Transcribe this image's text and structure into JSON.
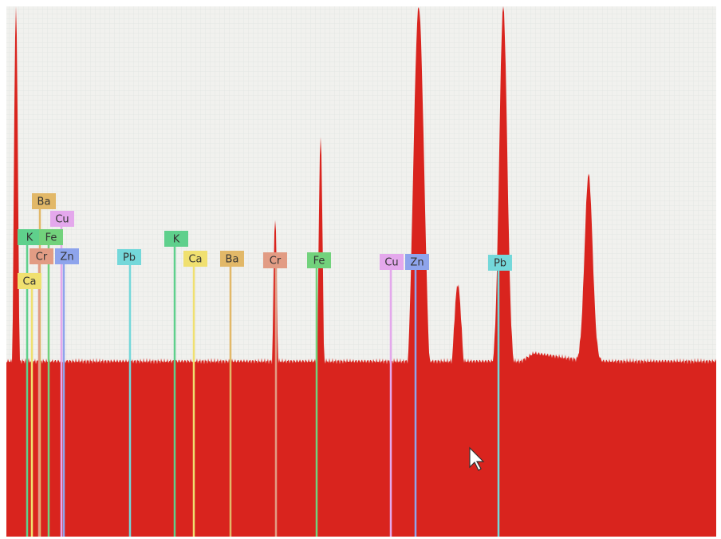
{
  "markers": [
    {
      "label": "Ba",
      "color": "#e2b868"
    },
    {
      "label": "Cu",
      "color": "#e4a8ec"
    },
    {
      "label": "K",
      "color": "#5fd08c"
    },
    {
      "label": "Fe",
      "color": "#72d27c"
    },
    {
      "label": "Cr",
      "color": "#e29c84"
    },
    {
      "label": "Zn",
      "color": "#8ea4ec"
    },
    {
      "label": "Ca",
      "color": "#f0e070"
    },
    {
      "label": "Pb",
      "color": "#74d8da"
    },
    {
      "label": "K",
      "color": "#5fd08c"
    },
    {
      "label": "Ca",
      "color": "#f0e070"
    },
    {
      "label": "Ba",
      "color": "#e2b868"
    },
    {
      "label": "Cr",
      "color": "#e29c84"
    },
    {
      "label": "Fe",
      "color": "#72d27c"
    },
    {
      "label": "Cu",
      "color": "#e4a8ec"
    },
    {
      "label": "Zn",
      "color": "#8ea4ec"
    },
    {
      "label": "Pb",
      "color": "#74d8da"
    }
  ]
}
